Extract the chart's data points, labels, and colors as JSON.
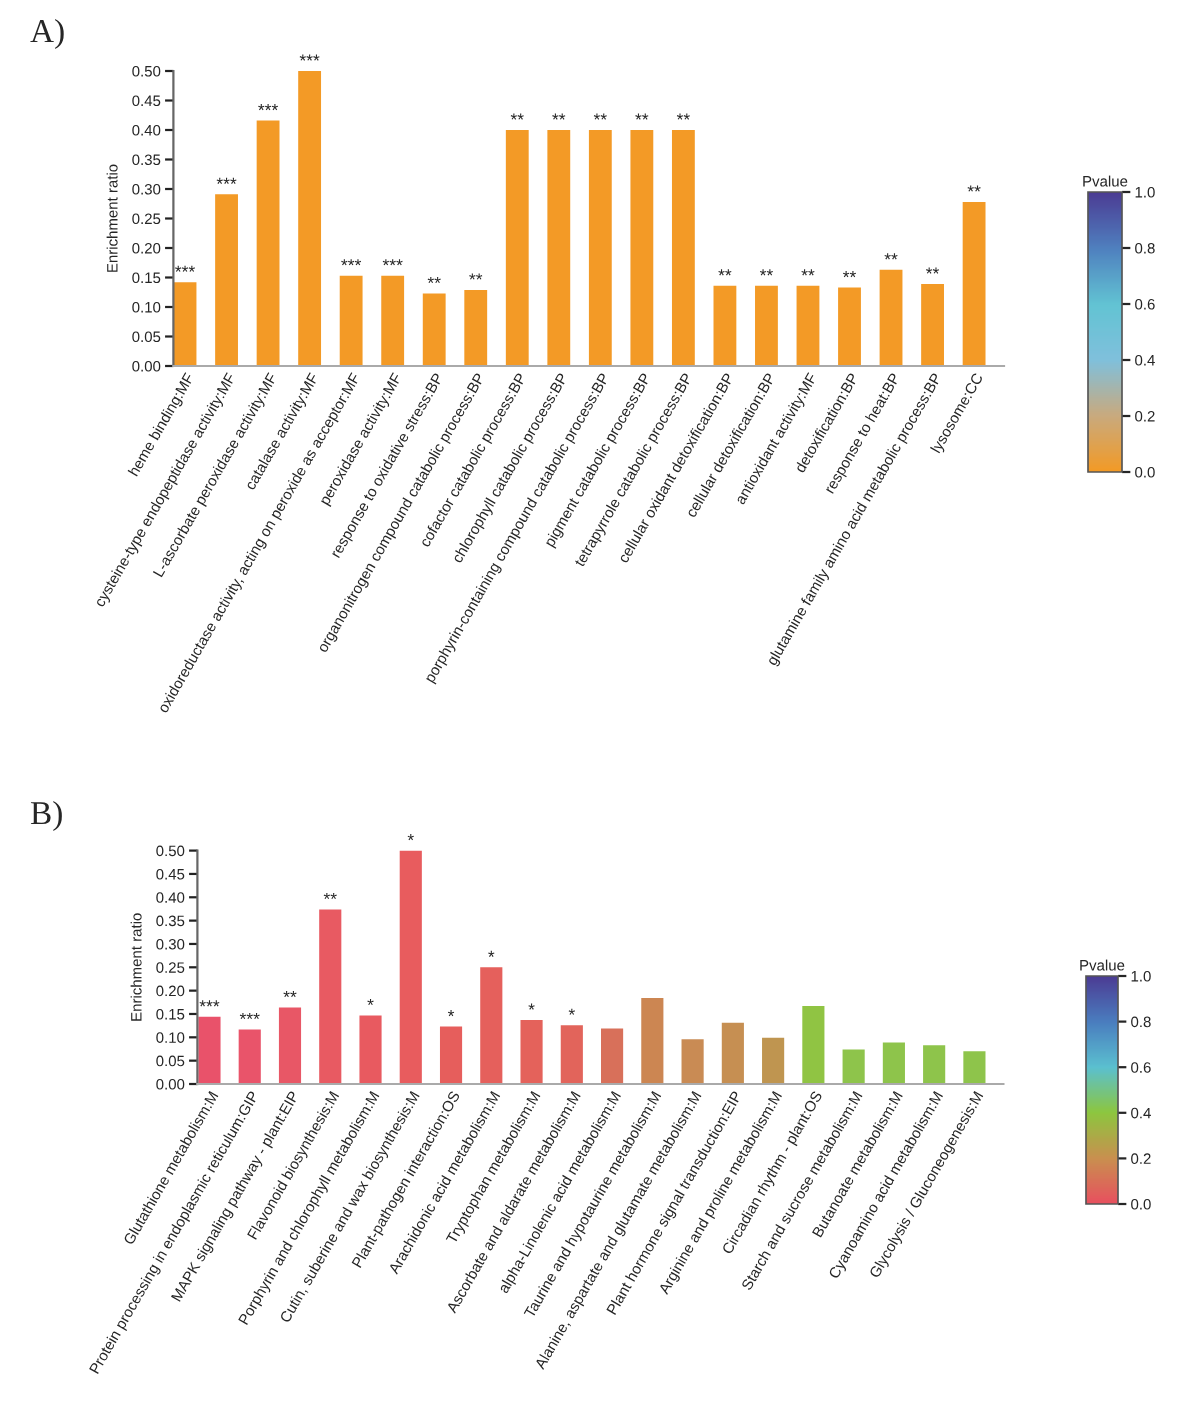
{
  "chart_data": [
    {
      "type": "bar",
      "title": "A)",
      "ylabel": "Enrichment ratio",
      "categories": [
        "heme binding:MF",
        "cysteine-type endopeptidase activity:MF",
        "L-ascorbate peroxidase activity:MF",
        "catalase activity:MF",
        "oxidoreductase activity, acting on peroxide as acceptor:MF",
        "peroxidase activity:MF",
        "response to oxidative stress:BP",
        "organonitrogen compound catabolic process:BP",
        "cofactor catabolic process:BP",
        "chlorophyll catabolic process:BP",
        "porphyrin-containing compound catabolic process:BP",
        "pigment catabolic process:BP",
        "tetrapyrrole catabolic process:BP",
        "cellular oxidant detoxification:BP",
        "cellular detoxification:BP",
        "antioxidant activity:MF",
        "detoxification:BP",
        "response to heat:BP",
        "glutamine family amino acid metabolic process:BP",
        "lysosome:CC"
      ],
      "values": [
        0.142,
        0.291,
        0.416,
        0.5,
        0.153,
        0.153,
        0.123,
        0.129,
        0.4,
        0.4,
        0.4,
        0.4,
        0.4,
        0.136,
        0.136,
        0.136,
        0.133,
        0.163,
        0.139,
        0.278
      ],
      "colors": [
        "#f39a26",
        "#f39a26",
        "#f39a26",
        "#f39a26",
        "#f39a26",
        "#f39a26",
        "#f39a26",
        "#f39a26",
        "#f39a26",
        "#f39a26",
        "#f39a26",
        "#f39a26",
        "#f39a26",
        "#f39a26",
        "#f39a26",
        "#f39a26",
        "#f39a26",
        "#f39a26",
        "#f39a26",
        "#f39a26"
      ],
      "value_labels": [
        "***",
        "***",
        "***",
        "***",
        "***",
        "***",
        "**",
        "**",
        "**",
        "**",
        "**",
        "**",
        "**",
        "**",
        "**",
        "**",
        "**",
        "**",
        "**",
        "**"
      ],
      "ylim": [
        0,
        0.5
      ],
      "yticks": [
        {
          "value": 0,
          "label": "0.00"
        },
        {
          "value": 0.05,
          "label": "0.05"
        },
        {
          "value": 0.1,
          "label": "0.10"
        },
        {
          "value": 0.15,
          "label": "0.15"
        },
        {
          "value": 0.2,
          "label": "0.20"
        },
        {
          "value": 0.25,
          "label": "0.25"
        },
        {
          "value": 0.3,
          "label": "0.30"
        },
        {
          "value": 0.35,
          "label": "0.35"
        },
        {
          "value": 0.4,
          "label": "0.40"
        },
        {
          "value": 0.45,
          "label": "0.45"
        },
        {
          "value": 0.5,
          "label": "0.50"
        }
      ],
      "clabel": "Pvalue",
      "clim": [
        0,
        1
      ],
      "cticks": [
        {
          "value": 0,
          "label": "0.0"
        },
        {
          "value": 0.2,
          "label": "0.2"
        },
        {
          "value": 0.4,
          "label": "0.4"
        },
        {
          "value": 0.6,
          "label": "0.6"
        },
        {
          "value": 0.8,
          "label": "0.8"
        },
        {
          "value": 1,
          "label": "1.0"
        }
      ]
    },
    {
      "type": "bar",
      "title": "B)",
      "ylabel": "Enrichment ratio",
      "categories": [
        "Glutathione metabolism:M",
        "Protein processing in endoplasmic reticulum:GIP",
        "MAPK signaling pathway - plant:EIP",
        "Flavonoid biosynthesis:M",
        "Porphyrin and chlorophyll metabolism:M",
        "Cutin, suberine and wax biosynthesis:M",
        "Plant-pathogen interaction:OS",
        "Arachidonic acid metabolism:M",
        "Tryptophan metabolism:M",
        "Ascorbate and aldarate metabolism:M",
        "alpha-Linolenic acid metabolism:M",
        "Taurine and hypotaurine metabolism:M",
        "Alanine, aspartate and glutamate metabolism:M",
        "Plant hormone signal transduction:EIP",
        "Arginine and proline metabolism:M",
        "Circadian rhythm - plant:OS",
        "Starch and sucrose metabolism:M",
        "Butanoate metabolism:M",
        "Cyanoamino acid metabolism:M",
        "Glycolysis / Gluconeogenesis:M"
      ],
      "values": [
        0.144,
        0.117,
        0.164,
        0.374,
        0.147,
        0.5,
        0.123,
        0.25,
        0.137,
        0.126,
        0.119,
        0.184,
        0.096,
        0.131,
        0.099,
        0.167,
        0.074,
        0.089,
        0.083,
        0.07
      ],
      "colors": [
        "#e9526a",
        "#e9546a",
        "#e85766",
        "#e85a62",
        "#e85a60",
        "#e85c5e",
        "#e65e5c",
        "#e5605c",
        "#e4625b",
        "#e2645b",
        "#d8705a",
        "#cc8652",
        "#c98b54",
        "#c68f52",
        "#bf9550",
        "#90c443",
        "#8ec44b",
        "#8ec44b",
        "#8ec44b",
        "#8ec44b"
      ],
      "value_labels": [
        "***",
        "***",
        "**",
        "**",
        "*",
        "*",
        "*",
        "*",
        "*",
        "*",
        null,
        null,
        null,
        null,
        null,
        null,
        null,
        null,
        null,
        null
      ],
      "ylim": [
        0,
        0.5
      ],
      "yticks": [
        {
          "value": 0,
          "label": "0.00"
        },
        {
          "value": 0.05,
          "label": "0.05"
        },
        {
          "value": 0.1,
          "label": "0.10"
        },
        {
          "value": 0.15,
          "label": "0.15"
        },
        {
          "value": 0.2,
          "label": "0.20"
        },
        {
          "value": 0.25,
          "label": "0.25"
        },
        {
          "value": 0.3,
          "label": "0.30"
        },
        {
          "value": 0.35,
          "label": "0.35"
        },
        {
          "value": 0.4,
          "label": "0.40"
        },
        {
          "value": 0.45,
          "label": "0.45"
        },
        {
          "value": 0.5,
          "label": "0.50"
        }
      ],
      "clabel": "Pvalue",
      "clim": [
        0,
        1
      ],
      "cticks": [
        {
          "value": 0,
          "label": "0.0"
        },
        {
          "value": 0.2,
          "label": "0.2"
        },
        {
          "value": 0.4,
          "label": "0.4"
        },
        {
          "value": 0.6,
          "label": "0.6"
        },
        {
          "value": 0.8,
          "label": "0.8"
        },
        {
          "value": 1,
          "label": "1.0"
        }
      ]
    }
  ]
}
